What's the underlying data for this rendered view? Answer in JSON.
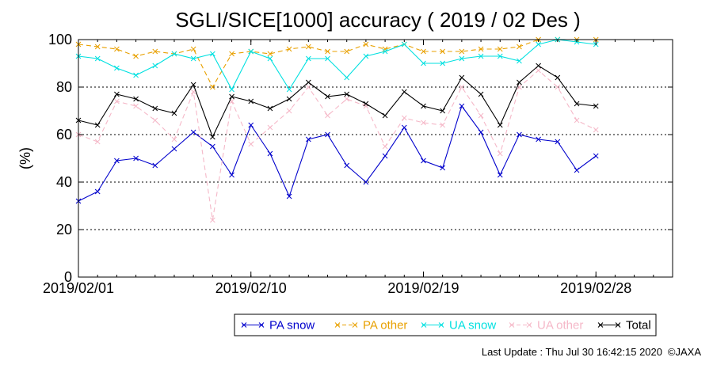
{
  "chart_data": {
    "type": "line",
    "title": "SGLI/SICE[1000] accuracy ( 2019 / 02 Des )",
    "ylabel": "(%)",
    "xlabel": "",
    "ylim": [
      0,
      100
    ],
    "yticks": [
      0,
      20,
      40,
      60,
      80,
      100
    ],
    "x_start": "2019/02/01",
    "x_end": "2019/03/04",
    "xticks": [
      "2019/02/01",
      "2019/02/10",
      "2019/02/19",
      "2019/02/28"
    ],
    "x": [
      "2019/02/01",
      "2019/02/02",
      "2019/02/03",
      "2019/02/04",
      "2019/02/05",
      "2019/02/06",
      "2019/02/07",
      "2019/02/08",
      "2019/02/09",
      "2019/02/10",
      "2019/02/11",
      "2019/02/12",
      "2019/02/13",
      "2019/02/14",
      "2019/02/15",
      "2019/02/16",
      "2019/02/17",
      "2019/02/18",
      "2019/02/19",
      "2019/02/20",
      "2019/02/21",
      "2019/02/22",
      "2019/02/23",
      "2019/02/24",
      "2019/02/25",
      "2019/02/26",
      "2019/02/27",
      "2019/02/28"
    ],
    "grid": "dotted horizontal",
    "legend_position": "bottom",
    "series": [
      {
        "name": "PA snow",
        "color": "#0000cc",
        "dash": "solid",
        "values": [
          32,
          36,
          49,
          50,
          47,
          54,
          61,
          55,
          43,
          64,
          52,
          34,
          58,
          60,
          47,
          40,
          51,
          63,
          49,
          46,
          72,
          61,
          43,
          60,
          58,
          57,
          45,
          51
        ]
      },
      {
        "name": "PA other",
        "color": "#e8a000",
        "dash": "dashed",
        "values": [
          98,
          97,
          96,
          93,
          95,
          94,
          96,
          80,
          94,
          95,
          94,
          96,
          97,
          95,
          95,
          98,
          96,
          98,
          95,
          95,
          95,
          96,
          96,
          97,
          100,
          100,
          100,
          100
        ]
      },
      {
        "name": "UA snow",
        "color": "#00e0e0",
        "dash": "solid",
        "values": [
          93,
          92,
          88,
          85,
          89,
          94,
          92,
          94,
          79,
          95,
          92,
          79,
          92,
          92,
          84,
          93,
          95,
          98,
          90,
          90,
          92,
          93,
          93,
          91,
          98,
          100,
          99,
          98
        ]
      },
      {
        "name": "UA other",
        "color": "#f5b8c8",
        "dash": "dashed",
        "values": [
          60,
          57,
          74,
          72,
          66,
          58,
          78,
          24,
          74,
          56,
          63,
          70,
          80,
          68,
          75,
          72,
          55,
          67,
          65,
          64,
          80,
          68,
          52,
          80,
          87,
          80,
          66,
          62
        ]
      },
      {
        "name": "Total",
        "color": "#000000",
        "dash": "solid",
        "values": [
          66,
          64,
          77,
          75,
          71,
          69,
          81,
          59,
          76,
          74,
          71,
          75,
          82,
          76,
          77,
          73,
          68,
          78,
          72,
          70,
          84,
          77,
          64,
          82,
          89,
          84,
          73,
          72
        ]
      }
    ]
  },
  "footer": {
    "last_update": "Last Update : Thu Jul 30 16:42:15 2020",
    "copyright": "©JAXA"
  }
}
